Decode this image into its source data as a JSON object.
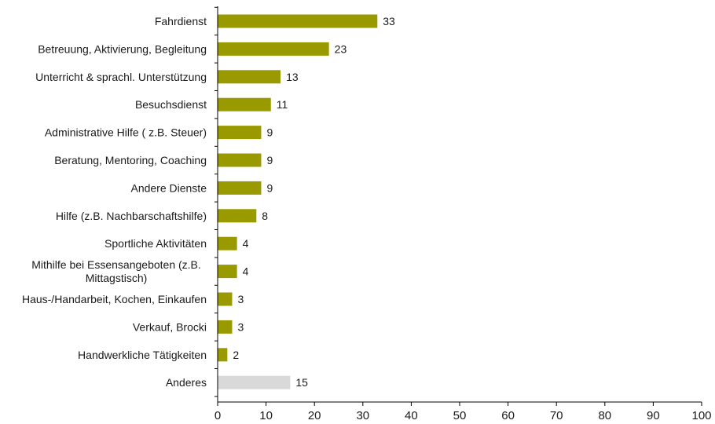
{
  "chart_data": {
    "type": "bar",
    "orientation": "horizontal",
    "title": "",
    "xlabel": "",
    "ylabel": "",
    "xlim": [
      0,
      100
    ],
    "x_ticks": [
      0,
      10,
      20,
      30,
      40,
      50,
      60,
      70,
      80,
      90,
      100
    ],
    "grid": false,
    "legend": "none",
    "colors": {
      "primary": "#999900",
      "other": "#d9d9d9"
    },
    "categories": [
      [
        "Fahrdienst"
      ],
      [
        "Betreuung, Aktivierung, Begleitung"
      ],
      [
        "Unterricht & sprachl. Unterstützung"
      ],
      [
        "Besuchsdienst"
      ],
      [
        "Administrative Hilfe ( z.B. Steuer)"
      ],
      [
        "Beratung, Mentoring, Coaching"
      ],
      [
        "Andere Dienste"
      ],
      [
        "Hilfe (z.B. Nachbarschaftshilfe)"
      ],
      [
        "Sportliche Aktivitäten"
      ],
      [
        "Mithilfe bei Essensangeboten (z.B.",
        "Mittagstisch)"
      ],
      [
        "Haus-/Handarbeit, Kochen, Einkaufen"
      ],
      [
        "Verkauf, Brocki"
      ],
      [
        "Handwerkliche Tätigkeiten"
      ],
      [
        "Anderes"
      ]
    ],
    "values": [
      33,
      23,
      13,
      11,
      9,
      9,
      9,
      8,
      4,
      4,
      3,
      3,
      2,
      15
    ]
  }
}
